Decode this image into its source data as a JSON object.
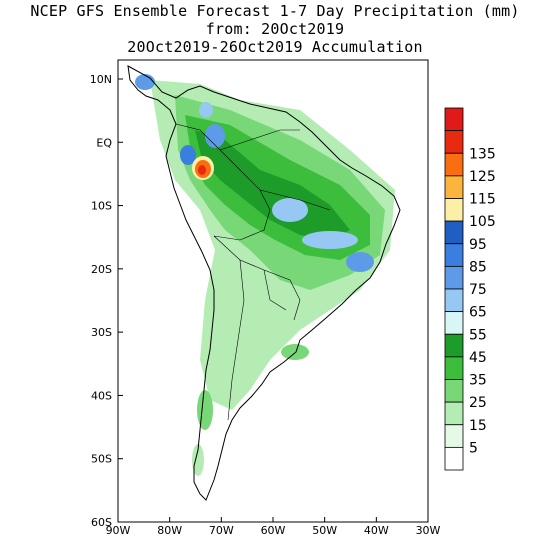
{
  "title": {
    "line1": "NCEP GFS Ensemble Forecast 1-7 Day Precipitation (mm)",
    "line2": "from: 20Oct2019",
    "line3": "20Oct2019-26Oct2019 Accumulation"
  },
  "axes": {
    "lon_range": [
      -90,
      -30
    ],
    "lat_range": [
      -60,
      13
    ],
    "x_ticks": [
      {
        "lon": -90,
        "label": "90W"
      },
      {
        "lon": -80,
        "label": "80W"
      },
      {
        "lon": -70,
        "label": "70W"
      },
      {
        "lon": -60,
        "label": "60W"
      },
      {
        "lon": -50,
        "label": "50W"
      },
      {
        "lon": -40,
        "label": "40W"
      },
      {
        "lon": -30,
        "label": "30W"
      }
    ],
    "y_ticks": [
      {
        "lat": 10,
        "label": "10N"
      },
      {
        "lat": 0,
        "label": "EQ"
      },
      {
        "lat": -10,
        "label": "10S"
      },
      {
        "lat": -20,
        "label": "20S"
      },
      {
        "lat": -30,
        "label": "30S"
      },
      {
        "lat": -40,
        "label": "40S"
      },
      {
        "lat": -50,
        "label": "50S"
      },
      {
        "lat": -60,
        "label": "60S"
      }
    ]
  },
  "legend": {
    "levels": [
      {
        "label": "",
        "color": "#e01a1a"
      },
      {
        "label": "135",
        "color": "#e82a10"
      },
      {
        "label": "125",
        "color": "#f86e10"
      },
      {
        "label": "115",
        "color": "#fbb43c"
      },
      {
        "label": "105",
        "color": "#fdf0a6"
      },
      {
        "label": "95",
        "color": "#1f5fc4"
      },
      {
        "label": "85",
        "color": "#3a7ee0"
      },
      {
        "label": "75",
        "color": "#5d9be8"
      },
      {
        "label": "65",
        "color": "#96c8f3"
      },
      {
        "label": "55",
        "color": "#d8f6f6"
      },
      {
        "label": "45",
        "color": "#1d9c2a"
      },
      {
        "label": "35",
        "color": "#3cbe3c"
      },
      {
        "label": "25",
        "color": "#78d878"
      },
      {
        "label": "15",
        "color": "#b4ecb4"
      },
      {
        "label": "5",
        "color": "#e6f8e6"
      },
      {
        "label": "",
        "color": "#ffffff"
      }
    ]
  }
}
